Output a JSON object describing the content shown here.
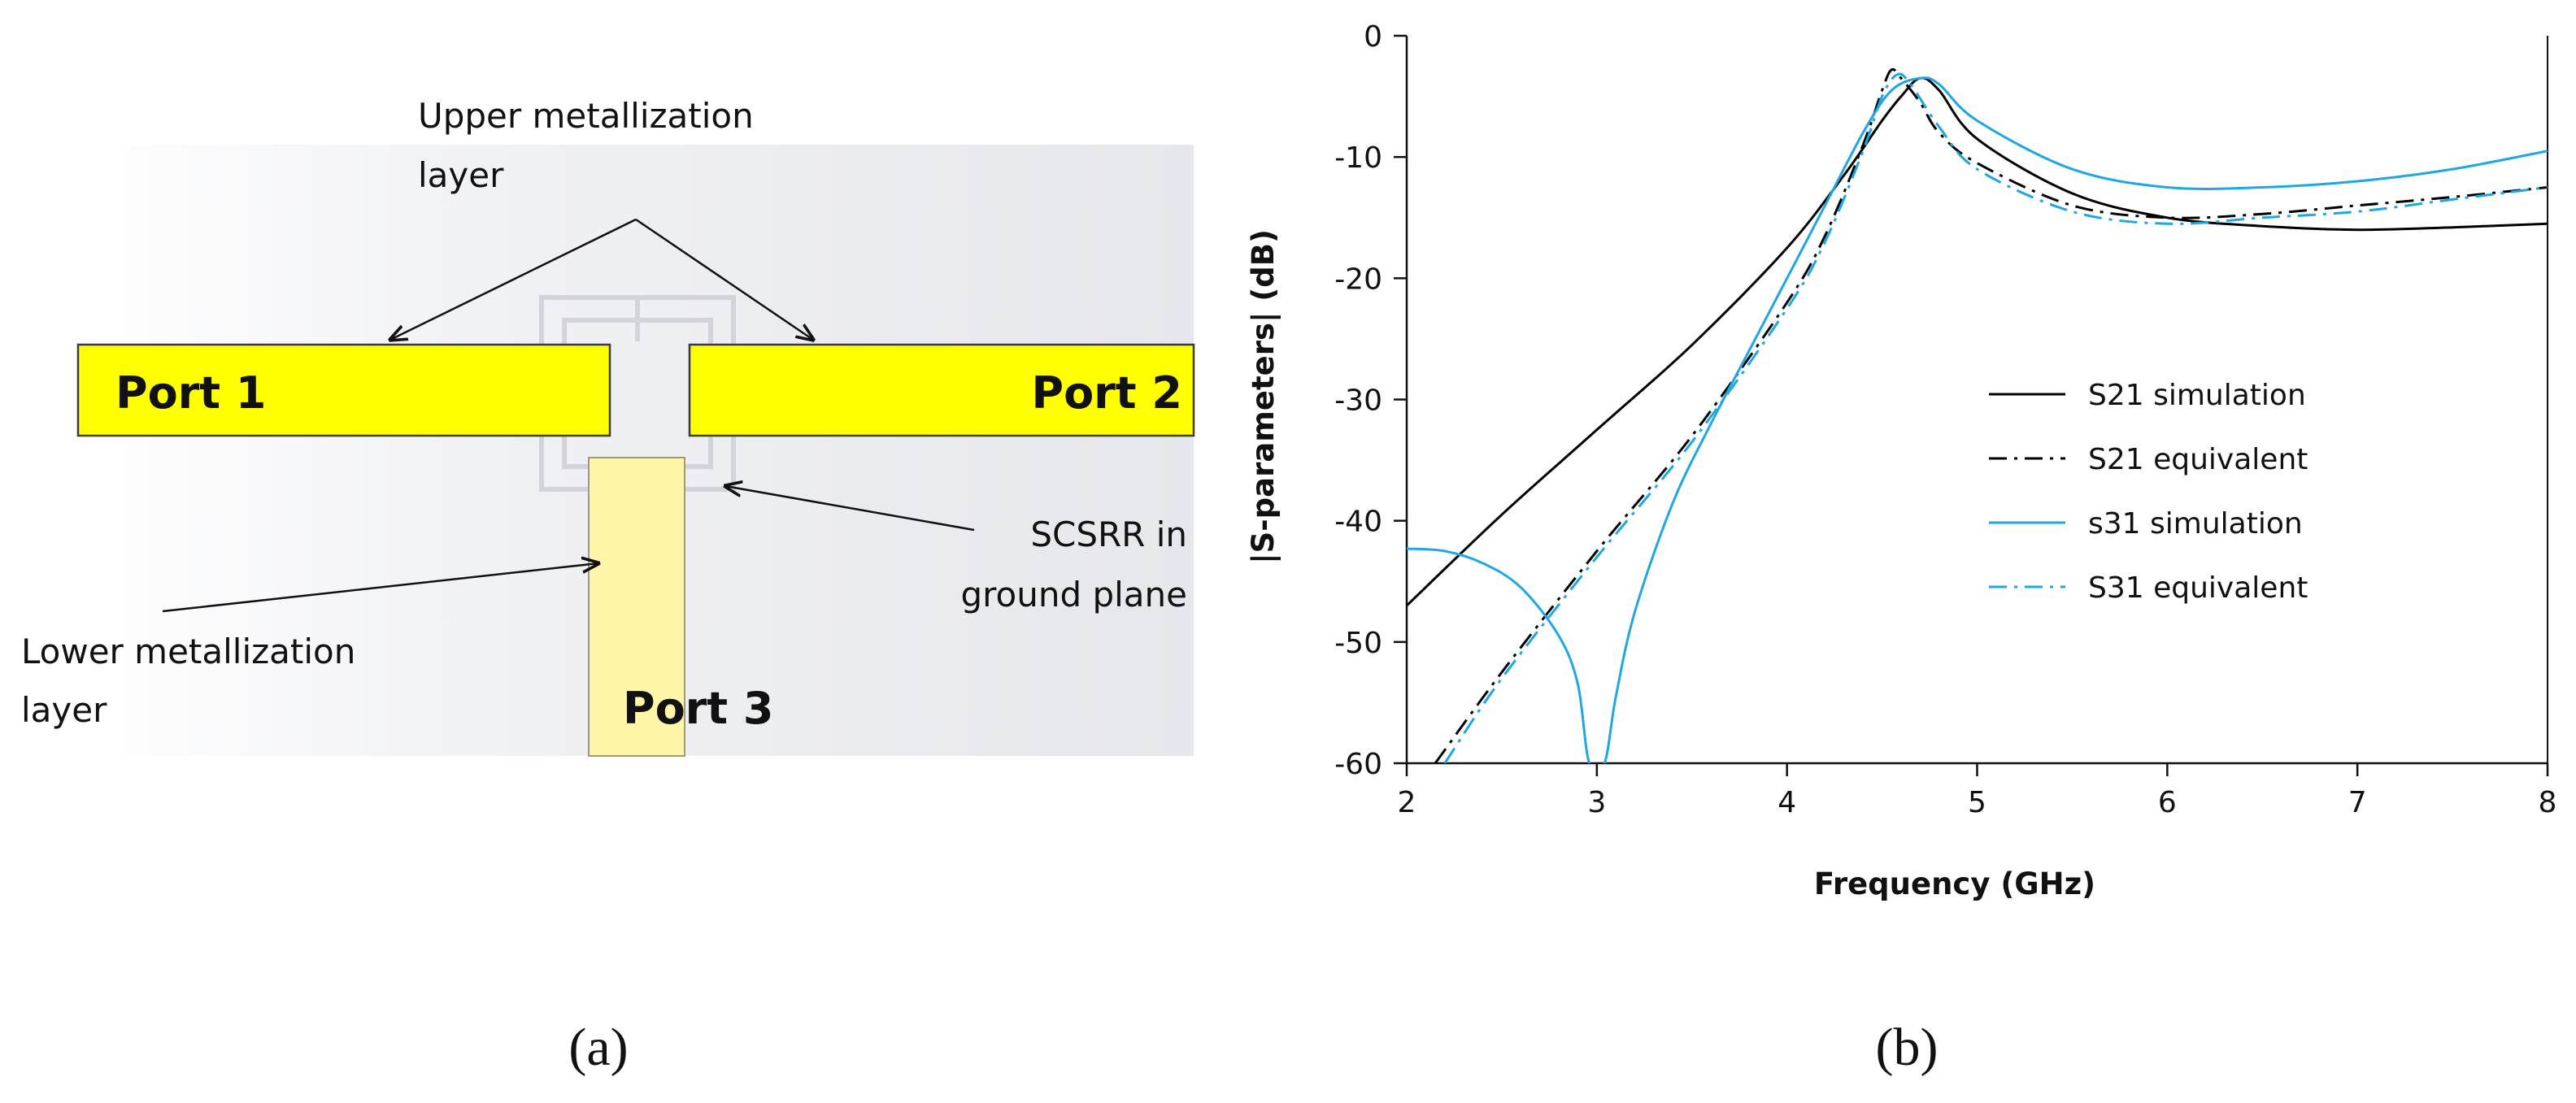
{
  "panel_a": {
    "caption": "(a)",
    "port1": "Port 1",
    "port2": "Port 2",
    "port3": "Port 3",
    "upper_layer_line1": "Upper metallization",
    "upper_layer_line2": "layer",
    "scsrr_line1": "SCSRR in",
    "scsrr_line2": "ground plane",
    "lower_layer_line1": "Lower metallization",
    "lower_layer_line2": "layer",
    "colors": {
      "microstrip": "#ffff00",
      "lower_strip": "#fff6a8",
      "substrate": "#e8e9ee"
    }
  },
  "panel_b": {
    "caption": "(b)"
  },
  "chart_data": {
    "type": "line",
    "xlabel": "Frequency (GHz)",
    "ylabel": "|S-parameters| (dB)",
    "xlim": [
      2,
      8
    ],
    "ylim": [
      -60,
      0
    ],
    "xticks": [
      2,
      3,
      4,
      5,
      6,
      7,
      8
    ],
    "yticks": [
      0,
      -10,
      -20,
      -30,
      -40,
      -50,
      -60
    ],
    "grid": false,
    "legend_position": "right-center",
    "series": [
      {
        "name": "S21 simulation",
        "color": "#000000",
        "dash": "solid",
        "x": [
          2,
          2.5,
          3,
          3.5,
          4,
          4.3,
          4.5,
          4.6,
          4.7,
          4.8,
          5,
          5.5,
          6,
          6.5,
          7,
          7.5,
          8
        ],
        "y": [
          -47,
          -39.5,
          -32.5,
          -25.5,
          -17.5,
          -11.5,
          -7,
          -5,
          -3.5,
          -4.5,
          -8.5,
          -13,
          -15,
          -15.7,
          -16,
          -15.8,
          -15.5
        ]
      },
      {
        "name": "S21 equivalent",
        "color": "#000000",
        "dash": "dashdot",
        "x": [
          2.15,
          2.5,
          3,
          3.5,
          4,
          4.2,
          4.4,
          4.5,
          4.55,
          4.6,
          4.7,
          4.8,
          5,
          5.5,
          6,
          6.5,
          7,
          7.5,
          8
        ],
        "y": [
          -60,
          -52.5,
          -42.5,
          -33,
          -22,
          -16.5,
          -9,
          -4.5,
          -2.8,
          -3.5,
          -5.5,
          -8,
          -10.5,
          -14,
          -15,
          -14.7,
          -14,
          -13.3,
          -12.5
        ]
      },
      {
        "name": "s31 simulation",
        "color": "#1fa7e1",
        "dash": "solid",
        "x": [
          2,
          2.2,
          2.4,
          2.6,
          2.8,
          2.9,
          2.96,
          3.04,
          3.1,
          3.2,
          3.4,
          3.6,
          3.8,
          4,
          4.2,
          4.4,
          4.55,
          4.7,
          4.8,
          5,
          5.5,
          6,
          6.5,
          7,
          7.5,
          8
        ],
        "y": [
          -42.3,
          -42.5,
          -43.5,
          -45.5,
          -49.5,
          -53.5,
          -60,
          -60,
          -54.5,
          -47.5,
          -38.5,
          -32,
          -26,
          -20,
          -14,
          -8,
          -4.5,
          -3.5,
          -4,
          -7,
          -11,
          -12.5,
          -12.5,
          -12,
          -11,
          -9.5
        ]
      },
      {
        "name": "S31 equivalent",
        "color": "#1fa7e1",
        "dash": "dashdot",
        "x": [
          2.2,
          2.5,
          3,
          3.5,
          4,
          4.2,
          4.4,
          4.5,
          4.58,
          4.65,
          4.8,
          5,
          5.5,
          6,
          6.5,
          7,
          7.5,
          8
        ],
        "y": [
          -60,
          -53,
          -43,
          -33.5,
          -22.5,
          -17,
          -9.5,
          -5,
          -3.2,
          -4,
          -7.5,
          -11,
          -14.5,
          -15.5,
          -15,
          -14.5,
          -13.5,
          -12.5
        ]
      }
    ]
  }
}
